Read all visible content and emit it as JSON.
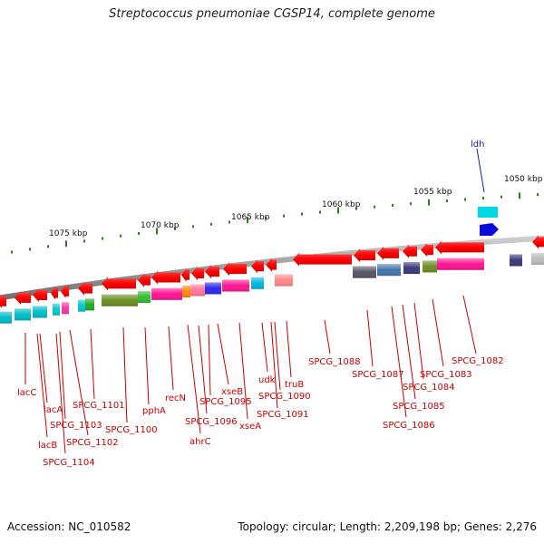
{
  "title": "Streptococcus pneumoniae CGSP14, complete genome",
  "accession": "Accession: NC_010582",
  "summary": "Topology: circular; Length: 2,209,198 bp; Genes: 2,276",
  "colors": {
    "backbone": "#8c8c8c",
    "gene_forward": "#ff0000",
    "label": "#cc0000",
    "highlight": "#1a1aaa",
    "tick": "#2e7d1e"
  },
  "ticks": [
    "1050 kbp",
    "1055 kbp",
    "1060 kbp",
    "1065 kbp",
    "1070 kbp",
    "1075 kbp"
  ],
  "highlight_label": "ldh",
  "gene_labels": [
    "lacC",
    "lacA",
    "lacB",
    "SPCG_1104",
    "SPCG_1103",
    "SPCG_1102",
    "SPCG_1101",
    "SPCG_1100",
    "pphA",
    "recN",
    "ahrC",
    "SPCG_1096",
    "SPCG_1095",
    "xseB",
    "xseA",
    "udk",
    "SPCG_1091",
    "SPCG_1090",
    "truB",
    "SPCG_1088",
    "SPCG_1087",
    "SPCG_1086",
    "SPCG_1085",
    "SPCG_1084",
    "SPCG_1083",
    "SPCG_1082"
  ]
}
